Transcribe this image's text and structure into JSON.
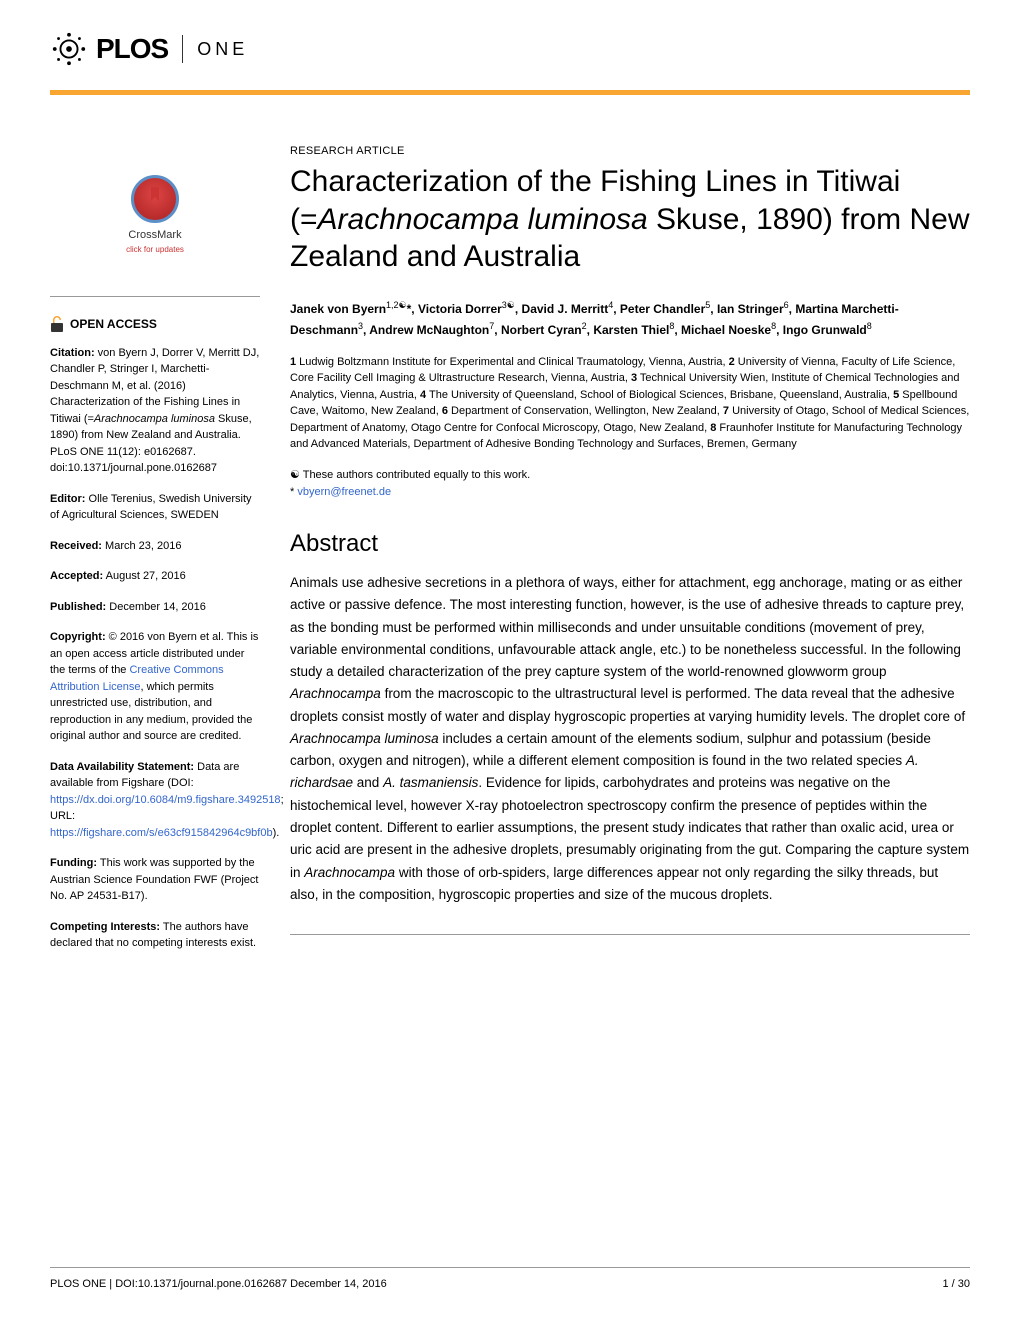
{
  "header": {
    "journal_main": "PLOS",
    "journal_sub": "ONE"
  },
  "article": {
    "type": "RESEARCH ARTICLE",
    "title_part1": "Characterization of the Fishing Lines in Titiwai (=",
    "title_italic": "Arachnocampa luminosa",
    "title_part2": " Skuse, 1890) from New Zealand and Australia",
    "authors_html": "Janek von Byern<sup>1,2☯</sup>*, Victoria Dorrer<sup>3☯</sup>, David J. Merritt<sup>4</sup>, Peter Chandler<sup>5</sup>, Ian Stringer<sup>6</sup>, Martina Marchetti-Deschmann<sup>3</sup>, Andrew McNaughton<sup>7</sup>, Norbert Cyran<sup>2</sup>, Karsten Thiel<sup>8</sup>, Michael Noeske<sup>8</sup>, Ingo Grunwald<sup>8</sup>",
    "affiliations": "1 Ludwig Boltzmann Institute for Experimental and Clinical Traumatology, Vienna, Austria, 2 University of Vienna, Faculty of Life Science, Core Facility Cell Imaging & Ultrastructure Research, Vienna, Austria, 3 Technical University Wien, Institute of Chemical Technologies and Analytics, Vienna, Austria, 4 The University of Queensland, School of Biological Sciences, Brisbane, Queensland, Australia, 5 Spellbound Cave, Waitomo, New Zealand, 6 Department of Conservation, Wellington, New Zealand, 7 University of Otago, School of Medical Sciences, Department of Anatomy, Otago Centre for Confocal Microscopy, Otago, New Zealand, 8 Fraunhofer Institute for Manufacturing Technology and Advanced Materials, Department of Adhesive Bonding Technology and Surfaces, Bremen, Germany",
    "contrib_note": "☯ These authors contributed equally to this work.",
    "corr_star": "*",
    "corr_email": "vbyern@freenet.de"
  },
  "crossmark": {
    "label": "CrossMark",
    "sub": "click for updates"
  },
  "sidebar": {
    "open_access": "OPEN ACCESS",
    "citation_label": "Citation:",
    "citation_text": " von Byern J, Dorrer V, Merritt DJ, Chandler P, Stringer I, Marchetti-Deschmann M, et al. (2016) Characterization of the Fishing Lines in Titiwai (=Arachnocampa luminosa Skuse, 1890) from New Zealand and Australia. PLoS ONE 11(12): e0162687. doi:10.1371/journal.pone.0162687",
    "editor_label": "Editor:",
    "editor_text": " Olle Terenius, Swedish University of Agricultural Sciences, SWEDEN",
    "received_label": "Received:",
    "received_text": " March 23, 2016",
    "accepted_label": "Accepted:",
    "accepted_text": " August 27, 2016",
    "published_label": "Published:",
    "published_text": " December 14, 2016",
    "copyright_label": "Copyright:",
    "copyright_text": " © 2016 von Byern et al. This is an open access article distributed under the terms of the ",
    "copyright_link": "Creative Commons Attribution License",
    "copyright_text2": ", which permits unrestricted use, distribution, and reproduction in any medium, provided the original author and source are credited.",
    "data_label": "Data Availability Statement:",
    "data_text1": " Data are available from Figshare (DOI: ",
    "data_link1": "https://dx.doi.org/10.6084/m9.figshare.3492518",
    "data_text2": "; URL: ",
    "data_link2": "https://figshare.com/s/e63cf915842964c9bf0b",
    "data_text3": ").",
    "funding_label": "Funding:",
    "funding_text": " This work was supported by the Austrian Science Foundation FWF (Project No. AP 24531-B17).",
    "competing_label": "Competing Interests:",
    "competing_text": " The authors have declared that no competing interests exist."
  },
  "abstract": {
    "heading": "Abstract",
    "text": "Animals use adhesive secretions in a plethora of ways, either for attachment, egg anchorage, mating or as either active or passive defence. The most interesting function, however, is the use of adhesive threads to capture prey, as the bonding must be performed within milliseconds and under unsuitable conditions (movement of prey, variable environmental conditions, unfavourable attack angle, etc.) to be nonetheless successful. In the following study a detailed characterization of the prey capture system of the world-renowned glowworm group Arachnocampa from the macroscopic to the ultrastructural level is performed. The data reveal that the adhesive droplets consist mostly of water and display hygroscopic properties at varying humidity levels. The droplet core of Arachnocampa luminosa includes a certain amount of the elements sodium, sulphur and potassium (beside carbon, oxygen and nitrogen), while a different element composition is found in the two related species A. richardsae and A. tasmaniensis. Evidence for lipids, carbohydrates and proteins was negative on the histochemical level, however X-ray photoelectron spectroscopy confirm the presence of peptides within the droplet content. Different to earlier assumptions, the present study indicates that rather than oxalic acid, urea or uric acid are present in the adhesive droplets, presumably originating from the gut. Comparing the capture system in Arachnocampa with those of orb-spiders, large differences appear not only regarding the silky threads, but also, in the composition, hygroscopic properties and size of the mucous droplets."
  },
  "footer": {
    "left": "PLOS ONE | DOI:10.1371/journal.pone.0162687    December 14, 2016",
    "right": "1 / 30"
  },
  "colors": {
    "accent": "#f8a531",
    "link": "#3366cc"
  }
}
